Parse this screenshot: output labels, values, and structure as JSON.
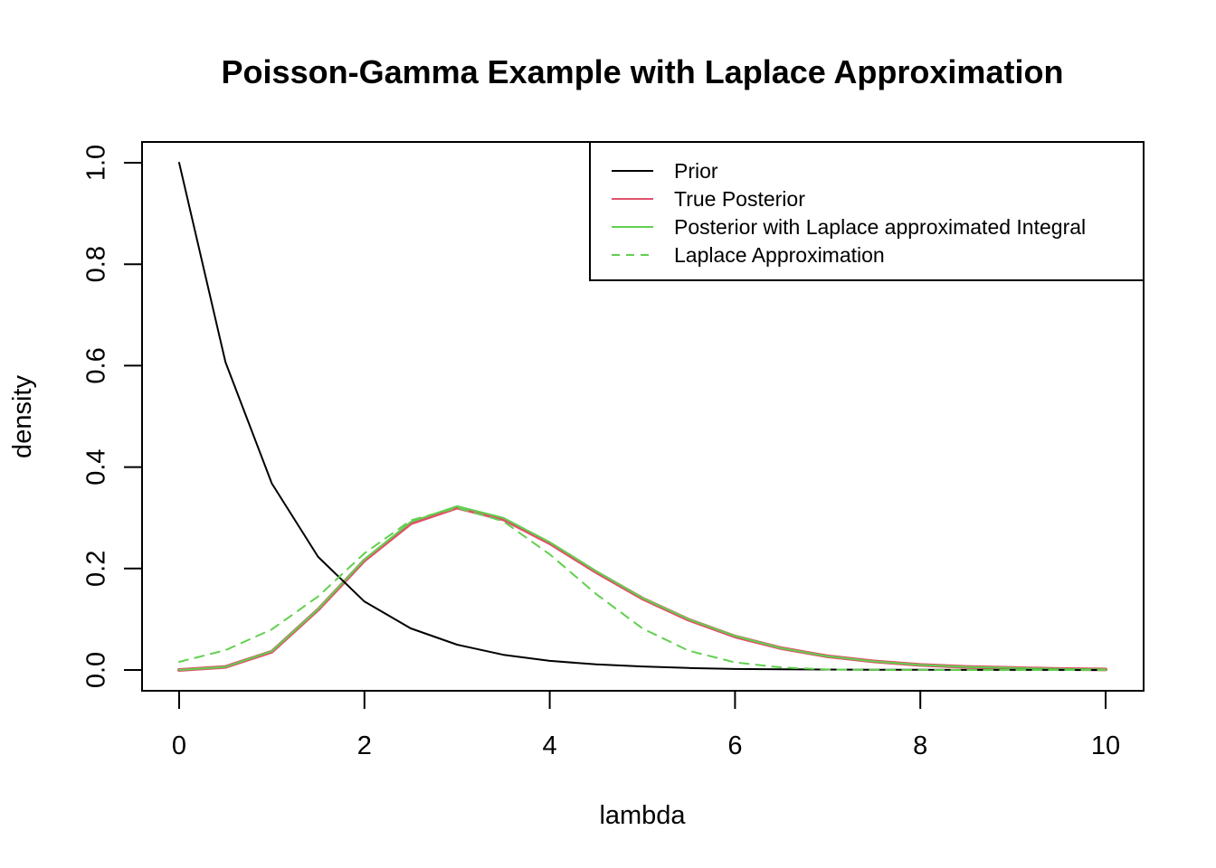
{
  "chart_data": {
    "type": "line",
    "title": "Poisson-Gamma Example with Laplace Approximation",
    "xlabel": "lambda",
    "ylabel": "density",
    "xlim": [
      0,
      10
    ],
    "ylim": [
      0,
      1.0
    ],
    "x_ticks": [
      0,
      2,
      4,
      6,
      8,
      10
    ],
    "x_tick_labels": [
      "0",
      "2",
      "4",
      "6",
      "8",
      "10"
    ],
    "y_ticks": [
      0.0,
      0.2,
      0.4,
      0.6,
      0.8,
      1.0
    ],
    "y_tick_labels": [
      "0.0",
      "0.2",
      "0.4",
      "0.6",
      "0.8",
      "1.0"
    ],
    "grid": false,
    "legend_position": "top-right",
    "x": [
      0.0,
      0.5,
      1.0,
      1.5,
      2.0,
      2.5,
      3.0,
      3.5,
      4.0,
      4.5,
      5.0,
      5.5,
      6.0,
      6.5,
      7.0,
      7.5,
      8.0,
      8.5,
      9.0,
      9.5,
      10.0
    ],
    "series": [
      {
        "name": "Prior",
        "color": "#000000",
        "dash": "solid",
        "width": 2,
        "values": [
          1.0,
          0.607,
          0.368,
          0.223,
          0.135,
          0.082,
          0.05,
          0.03,
          0.018,
          0.011,
          0.007,
          0.004,
          0.002,
          0.0015,
          0.0009,
          0.0006,
          0.0003,
          0.0002,
          0.0001,
          0.0001,
          0.0
        ]
      },
      {
        "name": "True Posterior",
        "color": "#DF536B",
        "dash": "solid",
        "width": 4,
        "values": [
          0.0,
          0.006,
          0.036,
          0.119,
          0.216,
          0.289,
          0.32,
          0.297,
          0.25,
          0.193,
          0.141,
          0.099,
          0.066,
          0.043,
          0.027,
          0.017,
          0.01,
          0.006,
          0.004,
          0.002,
          0.001
        ]
      },
      {
        "name": "Posterior with Laplace approximated Integral",
        "color": "#61D04F",
        "dash": "solid",
        "width": 2,
        "values": [
          0.0,
          0.006,
          0.037,
          0.12,
          0.218,
          0.292,
          0.323,
          0.3,
          0.252,
          0.195,
          0.142,
          0.1,
          0.067,
          0.043,
          0.027,
          0.017,
          0.01,
          0.006,
          0.004,
          0.002,
          0.001
        ]
      },
      {
        "name": "Laplace Approximation",
        "color": "#61D04F",
        "dash": "dashed",
        "width": 2,
        "values": [
          0.016,
          0.039,
          0.08,
          0.145,
          0.23,
          0.295,
          0.32,
          0.293,
          0.228,
          0.15,
          0.082,
          0.038,
          0.015,
          0.005,
          0.001,
          0.0003,
          0.0001,
          0.0,
          0.0,
          0.0,
          0.0
        ]
      }
    ]
  }
}
